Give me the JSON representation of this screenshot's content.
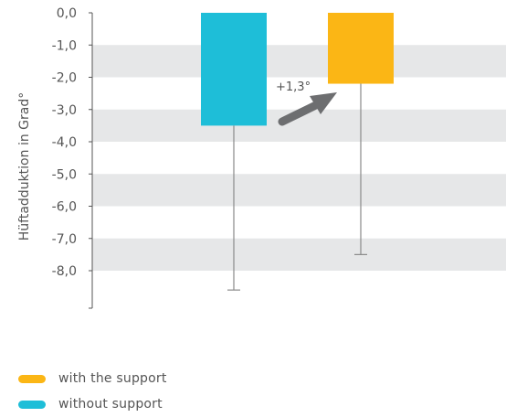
{
  "chart_data": {
    "type": "bar",
    "ylabel": "Hüftadduktion in Grad°",
    "ylim": [
      -9.0,
      0.0
    ],
    "ytick_values": [
      0,
      -1,
      -2,
      -3,
      -4,
      -5,
      -6,
      -7,
      -8
    ],
    "ytick_labels": [
      "0,0",
      "-1,0",
      "-2,0",
      "-3,0",
      "-4,0",
      "-5,0",
      "-6,0",
      "-7,0",
      "-8,0"
    ],
    "shaded_bands": [
      [
        -1,
        -2
      ],
      [
        -3,
        -4
      ],
      [
        -5,
        -6
      ],
      [
        -7,
        -8
      ]
    ],
    "series": [
      {
        "name": "without support",
        "value": -3.5,
        "error_low": -8.6,
        "color": "#1ebed8"
      },
      {
        "name": "with the support",
        "value": -2.2,
        "error_low": -7.5,
        "color": "#fbb615"
      }
    ],
    "annotation": {
      "text": "+1,3°",
      "from_series": 0,
      "to_series": 1,
      "arrow_color": "#6d6e70"
    },
    "grid": false,
    "band_color": "#e6e7e8"
  },
  "legend": {
    "items": [
      {
        "label": "with the support",
        "color": "#fbb615"
      },
      {
        "label": "without support",
        "color": "#1ebed8"
      }
    ]
  }
}
